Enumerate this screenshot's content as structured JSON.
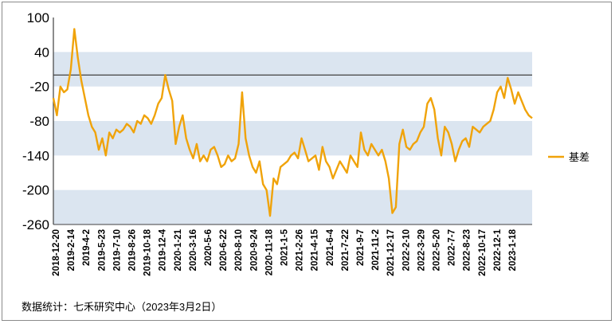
{
  "footer": {
    "source_text": "数据统计：七禾研究中心（2023年3月2日）"
  },
  "chart_data": {
    "type": "line",
    "ylim": [
      -260,
      100
    ],
    "y_ticks": [
      "100",
      "40",
      "-20",
      "-80",
      "-140",
      "-200",
      "-260"
    ],
    "y_tick_values": [
      100,
      40,
      -20,
      -80,
      -140,
      -200,
      -260
    ],
    "band_color": "#dbe5f0",
    "bands": [
      [
        -20,
        40
      ],
      [
        -140,
        -80
      ],
      [
        -260,
        -200
      ]
    ],
    "reference_line": {
      "y": 0,
      "color": "#404040"
    },
    "x_ticks": [
      "2018-12-20",
      "2019-2-14",
      "2019-4-2",
      "2019-5-23",
      "2019-7-10",
      "2019-8-26",
      "2019-10-18",
      "2019-12-4",
      "2020-1-21",
      "2020-3-16",
      "2020-5-6",
      "2020-6-22",
      "2020-8-10",
      "2020-9-24",
      "2020-11-18",
      "2021-1-5",
      "2021-2-26",
      "2021-4-15",
      "2021-6-4",
      "2021-7-22",
      "2021-9-7",
      "2021-11-2",
      "2021-12-17",
      "2022-2-10",
      "2022-3-29",
      "2022-5-20",
      "2022-7-7",
      "2022-8-23",
      "2022-10-17",
      "2022-12-1",
      "2023-1-18"
    ],
    "series": [
      {
        "name": "基差",
        "color": "#f0a30a",
        "values": [
          -40,
          -70,
          -20,
          -30,
          -25,
          10,
          80,
          30,
          -10,
          -40,
          -70,
          -90,
          -100,
          -130,
          -110,
          -140,
          -100,
          -110,
          -95,
          -100,
          -95,
          -85,
          -90,
          -100,
          -80,
          -85,
          -70,
          -75,
          -85,
          -70,
          -50,
          -40,
          0,
          -25,
          -45,
          -120,
          -90,
          -70,
          -110,
          -130,
          -145,
          -120,
          -150,
          -140,
          -150,
          -130,
          -125,
          -140,
          -160,
          -155,
          -140,
          -150,
          -145,
          -120,
          -30,
          -110,
          -140,
          -160,
          -170,
          -150,
          -190,
          -200,
          -245,
          -180,
          -190,
          -160,
          -155,
          -150,
          -140,
          -135,
          -145,
          -110,
          -130,
          -150,
          -145,
          -140,
          -165,
          -125,
          -150,
          -160,
          -180,
          -165,
          -150,
          -160,
          -170,
          -140,
          -150,
          -160,
          -100,
          -130,
          -140,
          -120,
          -130,
          -140,
          -130,
          -150,
          -180,
          -240,
          -230,
          -120,
          -95,
          -125,
          -130,
          -120,
          -115,
          -100,
          -90,
          -50,
          -40,
          -60,
          -110,
          -140,
          -90,
          -100,
          -120,
          -150,
          -130,
          -115,
          -110,
          -125,
          -90,
          -95,
          -100,
          -90,
          -85,
          -80,
          -60,
          -30,
          -20,
          -40,
          -5,
          -25,
          -50,
          -30,
          -45,
          -60,
          -70,
          -75
        ]
      }
    ],
    "legend": {
      "position": "right",
      "entries": [
        "基差"
      ]
    }
  }
}
